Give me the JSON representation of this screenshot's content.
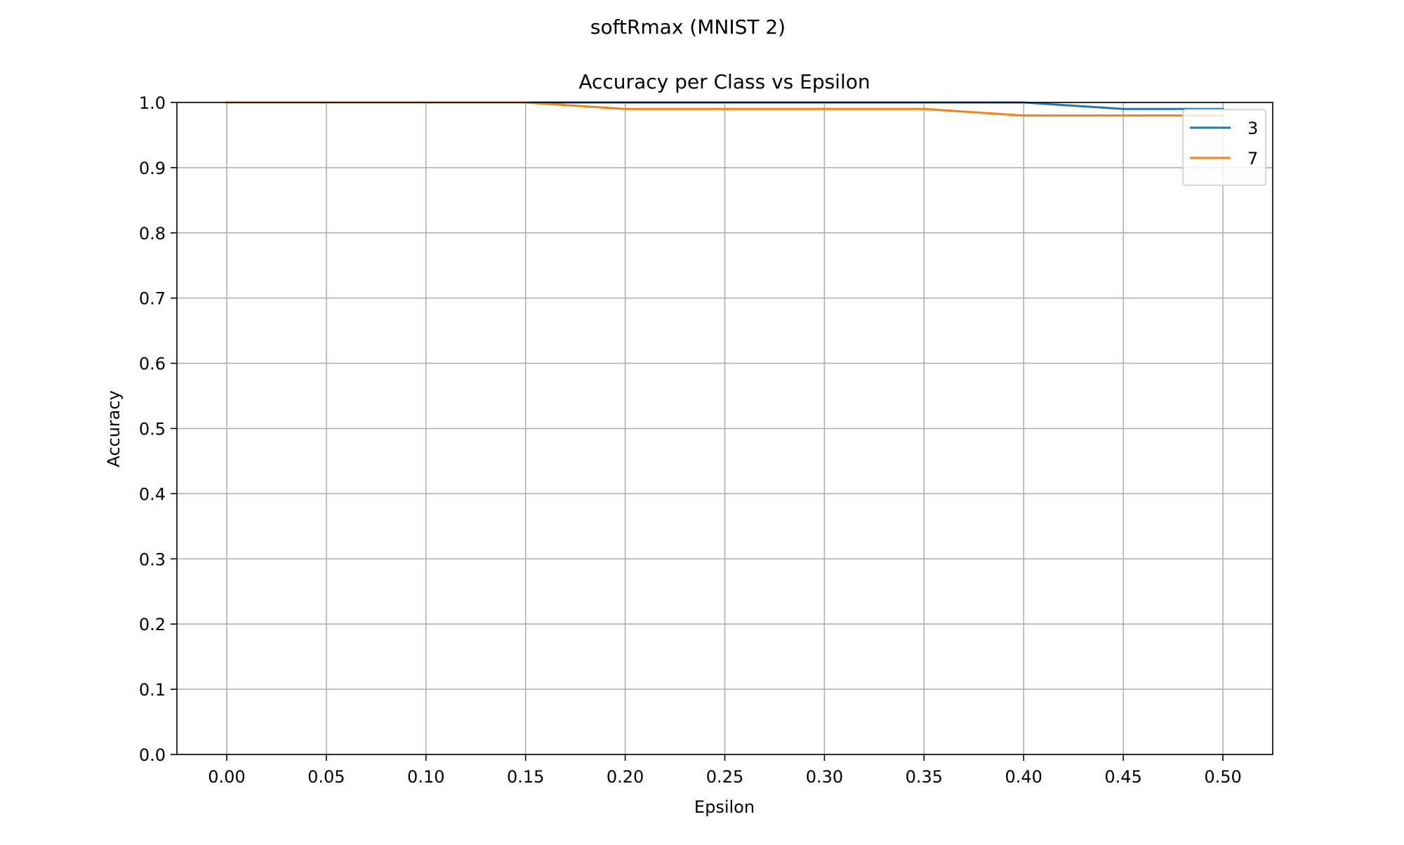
{
  "suptitle": "softRmax (MNIST 2)",
  "chart_data": {
    "type": "line",
    "title": "Accuracy per Class vs Epsilon",
    "xlabel": "Epsilon",
    "ylabel": "Accuracy",
    "xlim": [
      -0.025,
      0.525
    ],
    "ylim": [
      0.0,
      1.0
    ],
    "x_ticks": [
      "0.00",
      "0.05",
      "0.10",
      "0.15",
      "0.20",
      "0.25",
      "0.30",
      "0.35",
      "0.40",
      "0.45",
      "0.50"
    ],
    "y_ticks": [
      "0.0",
      "0.1",
      "0.2",
      "0.3",
      "0.4",
      "0.5",
      "0.6",
      "0.7",
      "0.8",
      "0.9",
      "1.0"
    ],
    "grid": true,
    "legend_position": "top-right",
    "x": [
      0.0,
      0.05,
      0.1,
      0.15,
      0.2,
      0.25,
      0.3,
      0.35,
      0.4,
      0.45,
      0.5
    ],
    "series": [
      {
        "name": "3",
        "color": "#1f77b4",
        "values": [
          1.0,
          1.0,
          1.0,
          1.0,
          1.0,
          1.0,
          1.0,
          1.0,
          1.0,
          0.99,
          0.99
        ]
      },
      {
        "name": "7",
        "color": "#ff7f0e",
        "values": [
          1.0,
          1.0,
          1.0,
          1.0,
          0.99,
          0.99,
          0.99,
          0.99,
          0.98,
          0.98,
          0.98
        ]
      }
    ]
  }
}
